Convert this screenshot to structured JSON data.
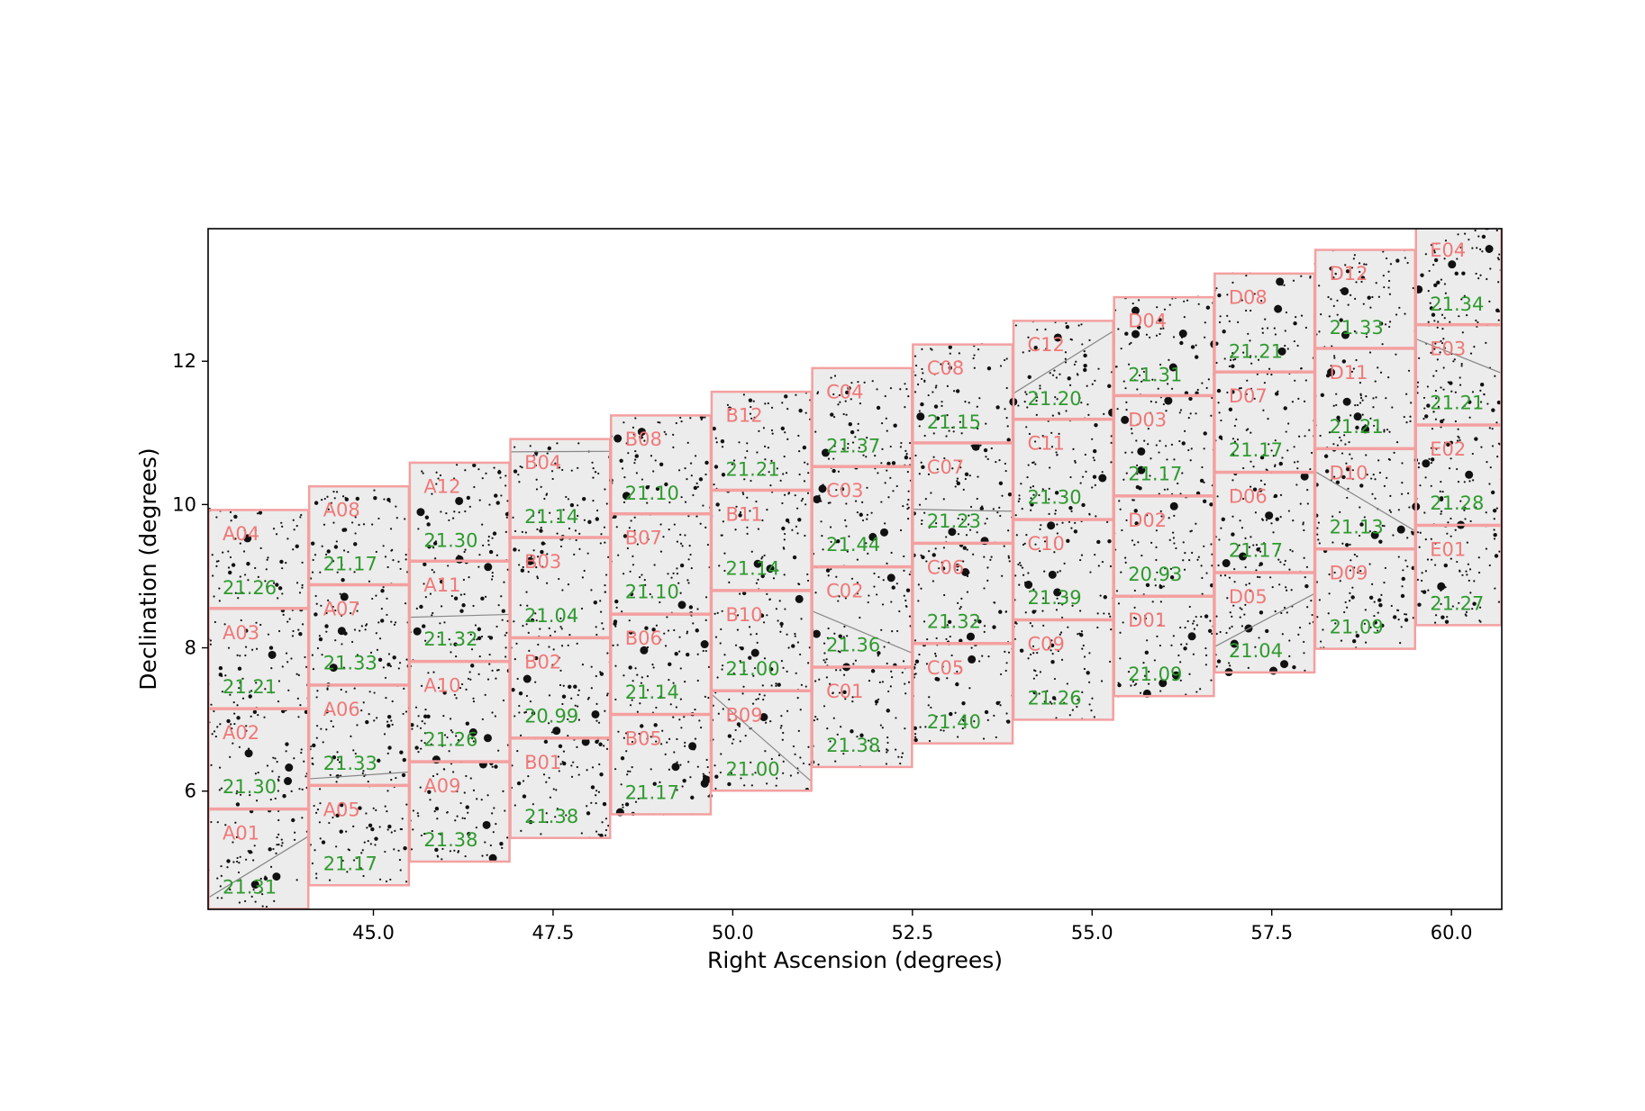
{
  "chart_data": {
    "type": "scatter",
    "xlabel": "Right Ascension (degrees)",
    "ylabel": "Declination (degrees)",
    "xlim": [
      42.7,
      60.7
    ],
    "ylim": [
      4.35,
      13.85
    ],
    "xticks": [
      45.0,
      47.5,
      50.0,
      52.5,
      55.0,
      57.5,
      60.0
    ],
    "xtick_labels": [
      "45.0",
      "47.5",
      "50.0",
      "52.5",
      "55.0",
      "57.5",
      "60.0"
    ],
    "yticks": [
      6,
      8,
      10,
      12
    ],
    "ytick_labels": [
      "6",
      "8",
      "10",
      "12"
    ],
    "grid": false,
    "background": "grayscale sky survey image with stars",
    "colors": {
      "tile_border": "#f4a0a0",
      "tile_name": "#f07878",
      "depth_value": "#2e9a2e"
    },
    "tiles": [
      {
        "name": "A01",
        "depth": "21.31",
        "x": [
          42.7,
          44.1
        ],
        "y": [
          4.35,
          5.75
        ]
      },
      {
        "name": "A02",
        "depth": "21.30",
        "x": [
          42.7,
          44.1
        ],
        "y": [
          5.75,
          7.15
        ]
      },
      {
        "name": "A03",
        "depth": "21.21",
        "x": [
          42.7,
          44.1
        ],
        "y": [
          7.15,
          8.55
        ]
      },
      {
        "name": "A04",
        "depth": "21.26",
        "x": [
          42.7,
          44.1
        ],
        "y": [
          8.55,
          9.93
        ]
      },
      {
        "name": "A05",
        "depth": "21.17",
        "x": [
          44.1,
          45.5
        ],
        "y": [
          4.68,
          6.08
        ]
      },
      {
        "name": "A06",
        "depth": "21.33",
        "x": [
          44.1,
          45.5
        ],
        "y": [
          6.08,
          7.48
        ]
      },
      {
        "name": "A07",
        "depth": "21.33",
        "x": [
          44.1,
          45.5
        ],
        "y": [
          7.48,
          8.88
        ]
      },
      {
        "name": "A08",
        "depth": "21.17",
        "x": [
          44.1,
          45.5
        ],
        "y": [
          8.88,
          10.26
        ]
      },
      {
        "name": "A09",
        "depth": "21.38",
        "x": [
          45.5,
          46.9
        ],
        "y": [
          5.01,
          6.41
        ]
      },
      {
        "name": "A10",
        "depth": "21.26",
        "x": [
          45.5,
          46.9
        ],
        "y": [
          6.41,
          7.81
        ]
      },
      {
        "name": "A11",
        "depth": "21.32",
        "x": [
          45.5,
          46.9
        ],
        "y": [
          7.81,
          9.21
        ]
      },
      {
        "name": "A12",
        "depth": "21.30",
        "x": [
          45.5,
          46.9
        ],
        "y": [
          9.21,
          10.59
        ]
      },
      {
        "name": "B01",
        "depth": "21.38",
        "x": [
          46.9,
          48.3
        ],
        "y": [
          5.34,
          6.74
        ]
      },
      {
        "name": "B02",
        "depth": "20.99",
        "x": [
          46.9,
          48.3
        ],
        "y": [
          6.74,
          8.14
        ]
      },
      {
        "name": "B03",
        "depth": "21.04",
        "x": [
          46.9,
          48.3
        ],
        "y": [
          8.14,
          9.54
        ]
      },
      {
        "name": "B04",
        "depth": "21.14",
        "x": [
          46.9,
          48.3
        ],
        "y": [
          9.54,
          10.92
        ]
      },
      {
        "name": "B05",
        "depth": "21.17",
        "x": [
          48.3,
          49.7
        ],
        "y": [
          5.67,
          7.07
        ]
      },
      {
        "name": "B06",
        "depth": "21.14",
        "x": [
          48.3,
          49.7
        ],
        "y": [
          7.07,
          8.47
        ]
      },
      {
        "name": "B07",
        "depth": "21.10",
        "x": [
          48.3,
          49.7
        ],
        "y": [
          8.47,
          9.87
        ]
      },
      {
        "name": "B08",
        "depth": "21.10",
        "x": [
          48.3,
          49.7
        ],
        "y": [
          9.87,
          11.25
        ]
      },
      {
        "name": "B09",
        "depth": "21.00",
        "x": [
          49.7,
          51.1
        ],
        "y": [
          6.0,
          7.4
        ]
      },
      {
        "name": "B10",
        "depth": "21.00",
        "x": [
          49.7,
          51.1
        ],
        "y": [
          7.4,
          8.8
        ]
      },
      {
        "name": "B11",
        "depth": "21.14",
        "x": [
          49.7,
          51.1
        ],
        "y": [
          8.8,
          10.2
        ]
      },
      {
        "name": "B12",
        "depth": "21.21",
        "x": [
          49.7,
          51.1
        ],
        "y": [
          10.2,
          11.58
        ]
      },
      {
        "name": "C01",
        "depth": "21.38",
        "x": [
          51.1,
          52.5
        ],
        "y": [
          6.33,
          7.73
        ]
      },
      {
        "name": "C02",
        "depth": "21.36",
        "x": [
          51.1,
          52.5
        ],
        "y": [
          7.73,
          9.13
        ]
      },
      {
        "name": "C03",
        "depth": "21.44",
        "x": [
          51.1,
          52.5
        ],
        "y": [
          9.13,
          10.53
        ]
      },
      {
        "name": "C04",
        "depth": "21.37",
        "x": [
          51.1,
          52.5
        ],
        "y": [
          10.53,
          11.91
        ]
      },
      {
        "name": "C05",
        "depth": "21.40",
        "x": [
          52.5,
          53.9
        ],
        "y": [
          6.66,
          8.06
        ]
      },
      {
        "name": "C06",
        "depth": "21.32",
        "x": [
          52.5,
          53.9
        ],
        "y": [
          8.06,
          9.46
        ]
      },
      {
        "name": "C07",
        "depth": "21.23",
        "x": [
          52.5,
          53.9
        ],
        "y": [
          9.46,
          10.86
        ]
      },
      {
        "name": "C08",
        "depth": "21.15",
        "x": [
          52.5,
          53.9
        ],
        "y": [
          10.86,
          12.24
        ]
      },
      {
        "name": "C09",
        "depth": "21.26",
        "x": [
          53.9,
          55.3
        ],
        "y": [
          6.99,
          8.39
        ]
      },
      {
        "name": "C10",
        "depth": "21.39",
        "x": [
          53.9,
          55.3
        ],
        "y": [
          8.39,
          9.79
        ]
      },
      {
        "name": "C11",
        "depth": "21.30",
        "x": [
          53.9,
          55.3
        ],
        "y": [
          9.79,
          11.19
        ]
      },
      {
        "name": "C12",
        "depth": "21.20",
        "x": [
          53.9,
          55.3
        ],
        "y": [
          11.19,
          12.57
        ]
      },
      {
        "name": "D01",
        "depth": "21.09",
        "x": [
          55.3,
          56.7
        ],
        "y": [
          7.32,
          8.72
        ]
      },
      {
        "name": "D02",
        "depth": "20.93",
        "x": [
          55.3,
          56.7
        ],
        "y": [
          8.72,
          10.12
        ]
      },
      {
        "name": "D03",
        "depth": "21.17",
        "x": [
          55.3,
          56.7
        ],
        "y": [
          10.12,
          11.52
        ]
      },
      {
        "name": "D04",
        "depth": "21.31",
        "x": [
          55.3,
          56.7
        ],
        "y": [
          11.52,
          12.9
        ]
      },
      {
        "name": "D05",
        "depth": "21.04",
        "x": [
          56.7,
          58.1
        ],
        "y": [
          7.65,
          9.05
        ]
      },
      {
        "name": "D06",
        "depth": "21.17",
        "x": [
          56.7,
          58.1
        ],
        "y": [
          9.05,
          10.45
        ]
      },
      {
        "name": "D07",
        "depth": "21.17",
        "x": [
          56.7,
          58.1
        ],
        "y": [
          10.45,
          11.85
        ]
      },
      {
        "name": "D08",
        "depth": "21.21",
        "x": [
          56.7,
          58.1
        ],
        "y": [
          11.85,
          13.23
        ]
      },
      {
        "name": "D09",
        "depth": "21.09",
        "x": [
          58.1,
          59.5
        ],
        "y": [
          7.98,
          9.38
        ]
      },
      {
        "name": "D10",
        "depth": "21.13",
        "x": [
          58.1,
          59.5
        ],
        "y": [
          9.38,
          10.78
        ]
      },
      {
        "name": "D11",
        "depth": "21.21",
        "x": [
          58.1,
          59.5
        ],
        "y": [
          10.78,
          12.18
        ]
      },
      {
        "name": "D12",
        "depth": "21.33",
        "x": [
          58.1,
          59.5
        ],
        "y": [
          12.18,
          13.56
        ]
      },
      {
        "name": "E01",
        "depth": "21.27",
        "x": [
          59.5,
          60.7
        ],
        "y": [
          8.31,
          9.71
        ]
      },
      {
        "name": "E02",
        "depth": "21.28",
        "x": [
          59.5,
          60.7
        ],
        "y": [
          9.71,
          11.11
        ]
      },
      {
        "name": "E03",
        "depth": "21.21",
        "x": [
          59.5,
          60.7
        ],
        "y": [
          11.11,
          12.51
        ]
      },
      {
        "name": "E04",
        "depth": "21.34",
        "x": [
          59.5,
          60.7
        ],
        "y": [
          12.51,
          13.89
        ]
      }
    ]
  }
}
